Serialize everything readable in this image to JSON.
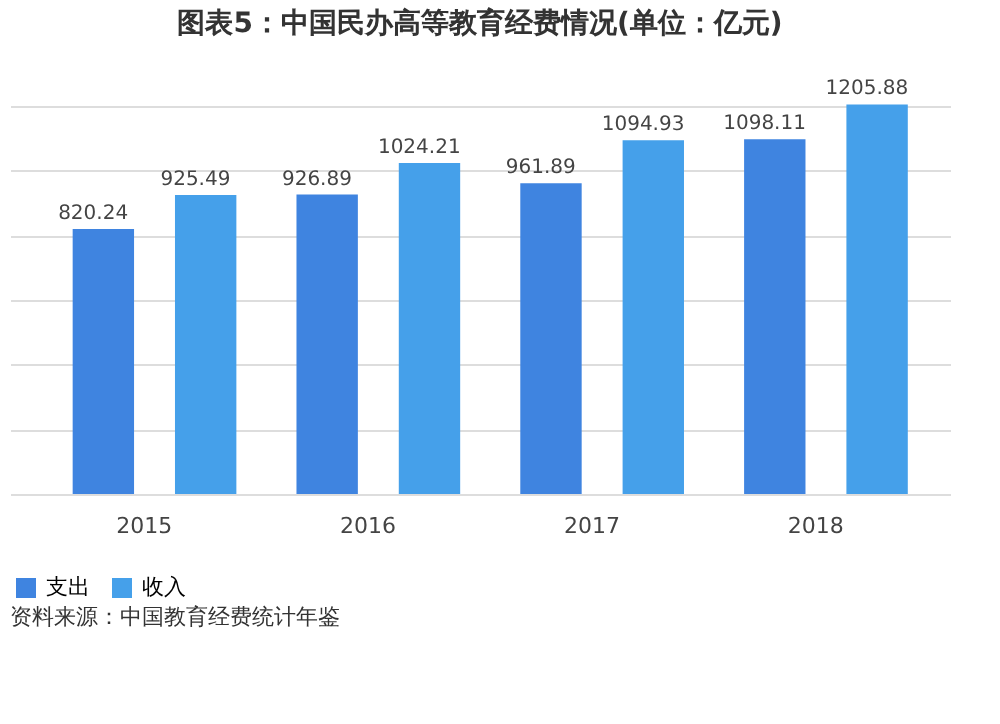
{
  "chart_data": {
    "type": "bar",
    "title": "图表5：中国民办高等教育经费情况(单位：亿元)",
    "categories": [
      "2015",
      "2016",
      "2017",
      "2018"
    ],
    "series": [
      {
        "name": "支出",
        "color": "#3f84e0",
        "values": [
          820.24,
          926.89,
          961.89,
          1098.11
        ]
      },
      {
        "name": "收入",
        "color": "#45a0ea",
        "values": [
          925.49,
          1024.21,
          1094.93,
          1205.88
        ]
      }
    ],
    "tick_labels": "x",
    "grid": "y",
    "legend": "bottom",
    "data_labels": true,
    "annotations": [
      "资料来源：中国教育经费统计年鉴"
    ]
  }
}
